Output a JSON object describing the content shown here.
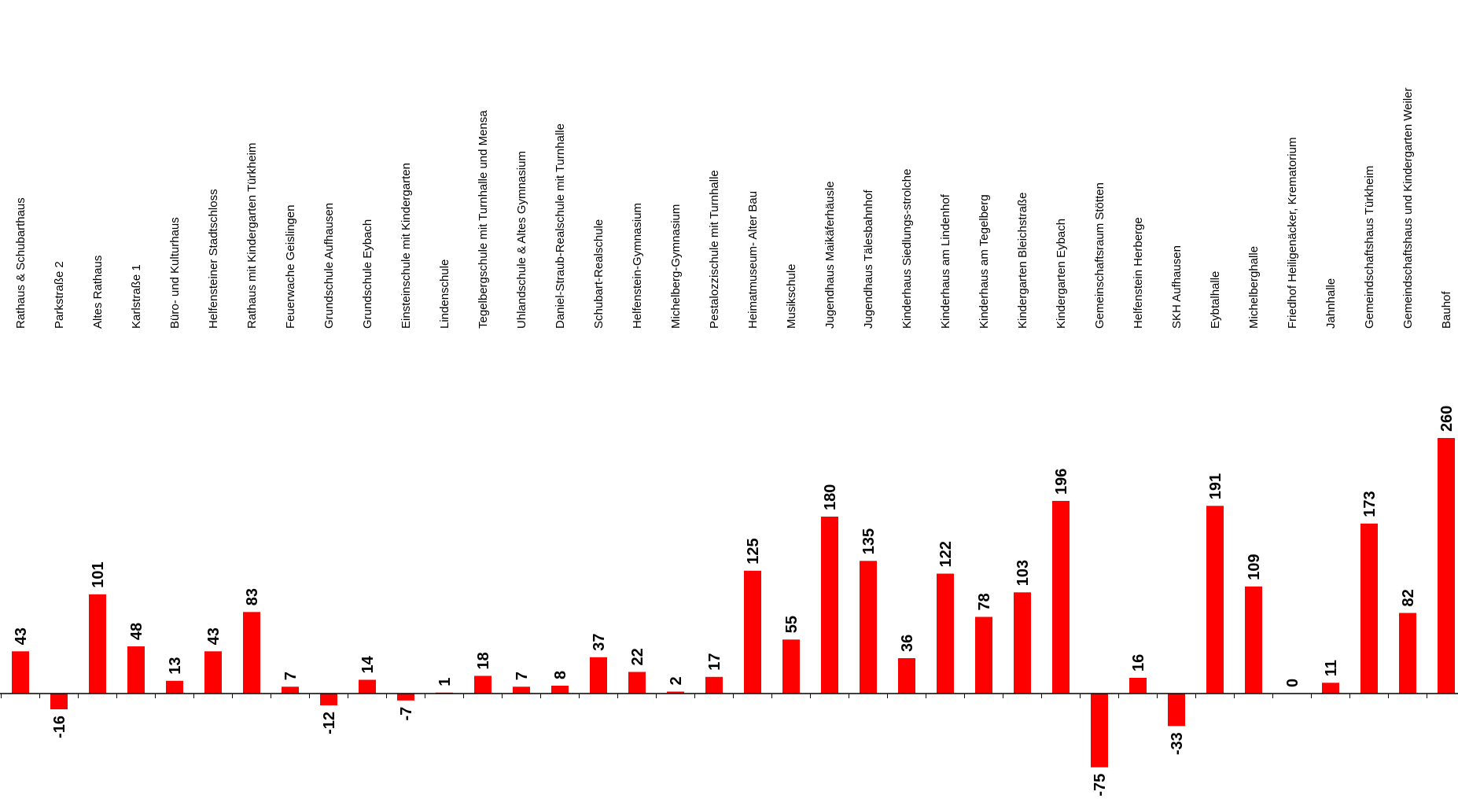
{
  "chart_data": {
    "type": "bar",
    "title": "",
    "xlabel": "",
    "ylabel": "",
    "bar_color": "#ff0000",
    "axis_color": "#000000",
    "grid": false,
    "legend": "none",
    "ylim": [
      -75,
      260
    ],
    "categories": [
      "Rathaus   &       Schubarthaus",
      "Parkstraße 2",
      "Altes Rathaus",
      "Karlstraße 1",
      "Büro- und Kulturhaus",
      "Helfensteiner Stadtschloss",
      "Rathaus mit Kindergarten Türkheim",
      "Feuerwache Geislingen",
      "Grundschule Aufhausen",
      "Grundschule Eybach",
      "Einsteinschule mit Kindergarten",
      "Lindenschule",
      "Tegelbergschule mit Turnhalle und Mensa",
      "Uhlandschule   &       Altes Gymnasium",
      "Daniel-Straub-Realschule mit Turnhalle",
      "Schubart-Realschule",
      "Helfenstein-Gymnasium",
      "Michelberg-Gymnasium",
      "Pestalozzischule mit Turnhalle",
      "Heimatmuseum- Alter Bau",
      "Musikschule",
      "Jugendhaus Maikäferhäusle",
      "Jugendhaus Tälesbahnhof",
      "Kinderhaus Siedlungs-strolche",
      "Kinderhaus am Lindenhof",
      "Kinderhaus am Tegelberg",
      "Kindergarten Bleichstraße",
      "Kindergarten Eybach",
      "Gemeinschaftsraum Stötten",
      "Helfenstein Herberge",
      "SKH Aufhausen",
      "Eybtalhalle",
      "Michelberghalle",
      "Friedhof Heiligenäcker, Krematorium",
      "Jahnhalle",
      "Gemeindschaftshaus Türkheim",
      "Gemeindschaftshaus und Kindergarten Weiler",
      "Bauhof"
    ],
    "values": [
      43,
      -16,
      101,
      48,
      13,
      43,
      83,
      7,
      -12,
      14,
      -7,
      1,
      18,
      7,
      8,
      37,
      22,
      2,
      17,
      125,
      55,
      180,
      135,
      36,
      122,
      78,
      103,
      196,
      -75,
      16,
      -33,
      191,
      109,
      0,
      11,
      173,
      82,
      260
    ],
    "data_labels": [
      "43",
      "-16",
      "101",
      "48",
      "13",
      "43",
      "83",
      "7",
      "-12",
      "14",
      "-7",
      "1",
      "18",
      "7",
      "8",
      "37",
      "22",
      "2",
      "17",
      "125",
      "55",
      "180",
      "135",
      "36",
      "122",
      "78",
      "103",
      "196",
      "-75",
      "16",
      "-33",
      "191",
      "109",
      "0",
      "11",
      "173",
      "82",
      "260"
    ]
  }
}
